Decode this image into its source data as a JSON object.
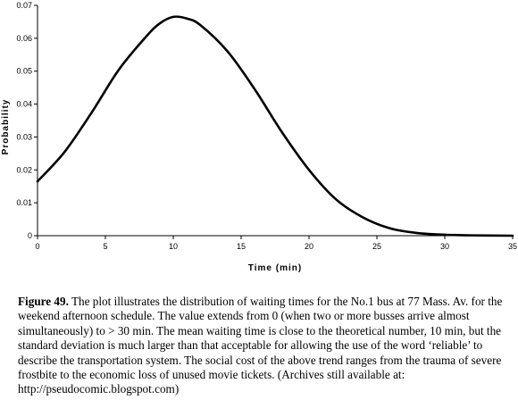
{
  "chart_data": {
    "type": "line",
    "xlabel": "Time (min)",
    "ylabel": "Probability",
    "xlim": [
      0,
      35
    ],
    "ylim": [
      0,
      0.07
    ],
    "xticks": [
      "0",
      "5",
      "10",
      "15",
      "20",
      "25",
      "30",
      "35"
    ],
    "yticks": [
      "0",
      "0.01",
      "0.02",
      "0.03",
      "0.04",
      "0.05",
      "0.06",
      "0.07"
    ],
    "grid": false,
    "legend": "none",
    "line_color": "#000000",
    "series": [
      {
        "x": [
          0,
          2,
          4,
          6,
          8,
          9,
          10,
          11,
          12,
          14,
          16,
          18,
          20,
          22,
          24,
          26,
          28,
          30,
          32,
          35
        ],
        "y": [
          0.0165,
          0.0255,
          0.0375,
          0.0505,
          0.0605,
          0.0645,
          0.0665,
          0.066,
          0.064,
          0.056,
          0.0445,
          0.0315,
          0.02,
          0.011,
          0.0055,
          0.0022,
          0.0008,
          0.0003,
          0.0001,
          0.0
        ]
      }
    ]
  },
  "caption": {
    "label": "Figure 49.",
    "text": " The plot illustrates the distribution of waiting times for the No.1 bus at 77 Mass. Av. for the weekend afternoon schedule. The value extends from 0 (when two or more busses arrive almost simultaneously) to > 30 min. The mean waiting time is close to the theoretical number, 10 min, but the standard deviation is much larger than that acceptable for allowing the use of the word ‘reliable’ to describe the transportation system. The social cost of the above trend ranges from the trauma of severe frostbite to the economic loss of unused movie tickets. (Archives still available at: http://pseudocomic.blogspot.com)"
  }
}
